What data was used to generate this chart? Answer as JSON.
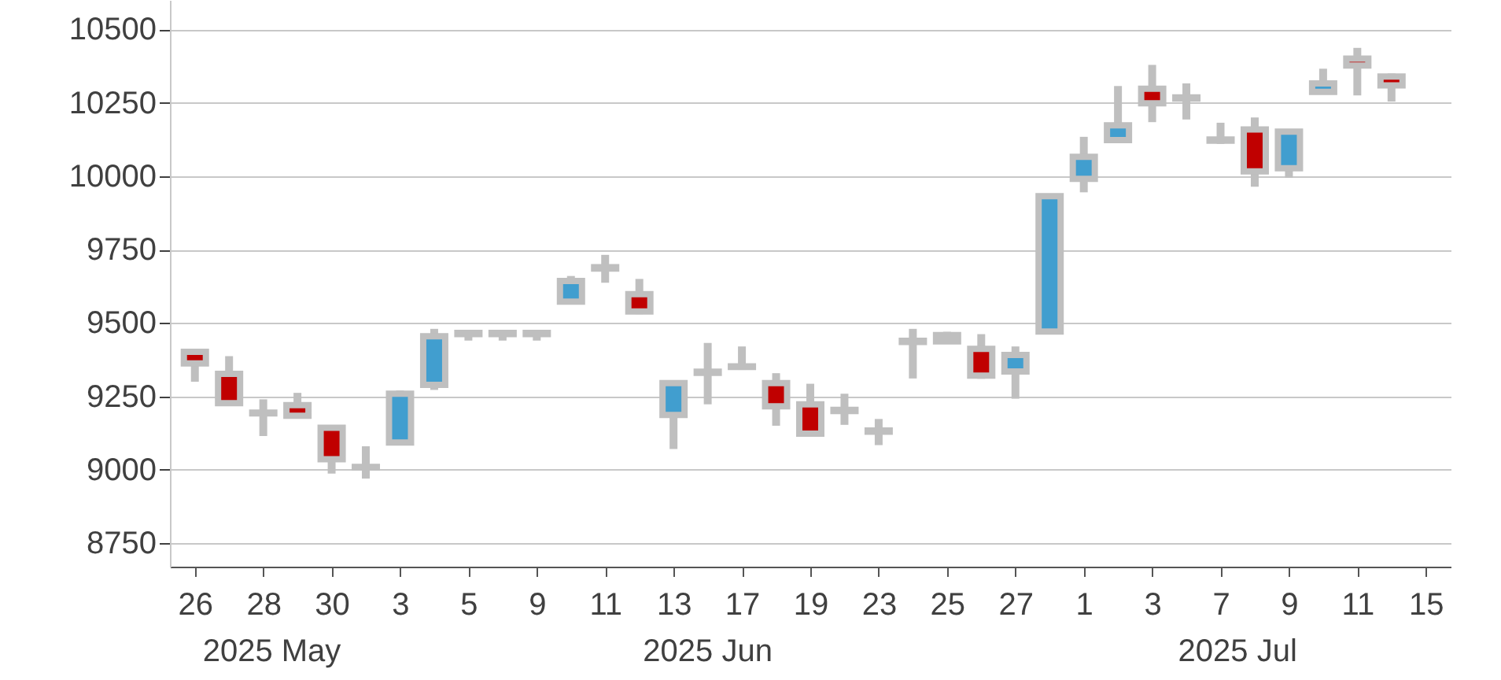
{
  "chart_data": {
    "type": "candlestick",
    "categories": [
      "26",
      null,
      "28",
      null,
      "30",
      null,
      "3",
      null,
      "5",
      null,
      "9",
      null,
      "11",
      null,
      "13",
      null,
      "17",
      null,
      "19",
      null,
      "23",
      null,
      "25",
      null,
      "27",
      null,
      "1",
      null,
      "3",
      null,
      "7",
      null,
      "9",
      null,
      "11",
      null,
      "15"
    ],
    "ohlc": [
      [
        9402,
        9410,
        9300,
        9362
      ],
      [
        9327,
        9387,
        9220,
        9227
      ],
      [
        9195,
        9240,
        9115,
        9192
      ],
      [
        9220,
        9262,
        9180,
        9184
      ],
      [
        9143,
        9150,
        8987,
        9036
      ],
      [
        9008,
        9080,
        8970,
        9010
      ],
      [
        9093,
        9270,
        9090,
        9259
      ],
      [
        9289,
        9480,
        9272,
        9455
      ],
      [
        9462,
        9470,
        9440,
        9466
      ],
      [
        9462,
        9470,
        9440,
        9466
      ],
      [
        9462,
        9470,
        9440,
        9466
      ],
      [
        9573,
        9660,
        9565,
        9643
      ],
      [
        9685,
        9732,
        9637,
        9690
      ],
      [
        9598,
        9650,
        9530,
        9539
      ],
      [
        9187,
        9300,
        9071,
        9295
      ],
      [
        9330,
        9432,
        9223,
        9334
      ],
      [
        9350,
        9420,
        9340,
        9352
      ],
      [
        9295,
        9329,
        9150,
        9216
      ],
      [
        9223,
        9293,
        9115,
        9123
      ],
      [
        9200,
        9259,
        9153,
        9204
      ],
      [
        9130,
        9173,
        9084,
        9134
      ],
      [
        9435,
        9480,
        9311,
        9439
      ],
      [
        9459,
        9470,
        9430,
        9437
      ],
      [
        9412,
        9462,
        9310,
        9321
      ],
      [
        9335,
        9420,
        9242,
        9391
      ],
      [
        9471,
        9940,
        9465,
        9932
      ],
      [
        9991,
        10134,
        9945,
        10066
      ],
      [
        10123,
        10307,
        10115,
        10173
      ],
      [
        10298,
        10379,
        10184,
        10248
      ],
      [
        10264,
        10316,
        10193,
        10268
      ],
      [
        10121,
        10182,
        10110,
        10125
      ],
      [
        10159,
        10200,
        9964,
        10016
      ],
      [
        10027,
        10160,
        9995,
        10152
      ],
      [
        10287,
        10366,
        10280,
        10316
      ],
      [
        10400,
        10437,
        10275,
        10377
      ],
      [
        10339,
        10350,
        10254,
        10309
      ],
      null
    ],
    "colors": [
      "#c00000",
      "#c00000",
      "#c00000",
      "#c00000",
      "#c00000",
      "#419ecf",
      "#419ecf",
      "#419ecf",
      "#419ecf",
      "#419ecf",
      "#419ecf",
      "#419ecf",
      "#419ecf",
      "#c00000",
      "#419ecf",
      "#419ecf",
      "#419ecf",
      "#c00000",
      "#c00000",
      "#419ecf",
      "#419ecf",
      "#419ecf",
      "#c00000",
      "#c00000",
      "#419ecf",
      "#419ecf",
      "#419ecf",
      "#419ecf",
      "#c00000",
      "#419ecf",
      "#419ecf",
      "#c00000",
      "#419ecf",
      "#419ecf",
      "#c00000",
      "#c00000",
      null
    ],
    "ylim": [
      8670,
      10600
    ],
    "yticks": [
      8750,
      9000,
      9250,
      9500,
      9750,
      10000,
      10250,
      10500
    ],
    "grid": "y",
    "annotations": [
      "2025 May",
      "2025 Jun",
      "2025 Jul"
    ]
  }
}
